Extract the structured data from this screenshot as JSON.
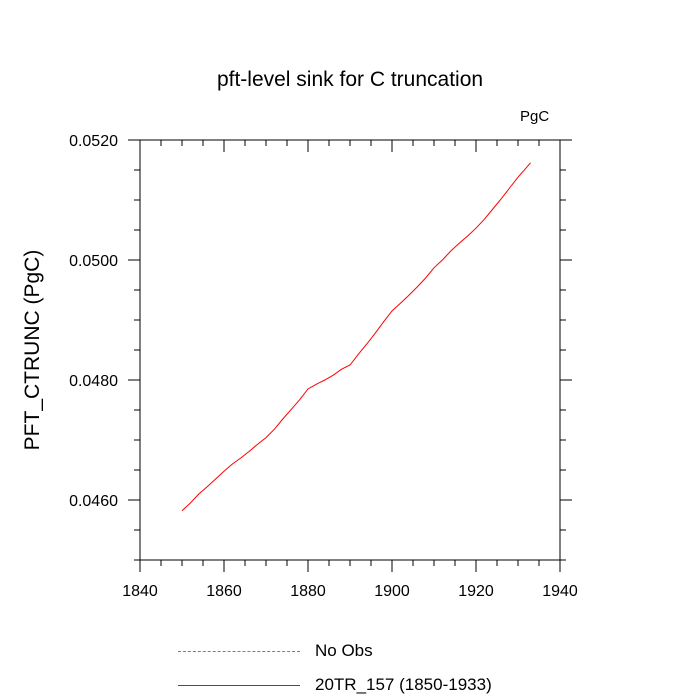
{
  "title": "pft-level sink for C truncation",
  "units_label": "PgC",
  "ylabel": "PFT_CTRUNC  (PgC)",
  "legend": [
    {
      "label": "No Obs",
      "style": "dashed",
      "color": "#6e6ef0"
    },
    {
      "label": "20TR_157 (1850-1933)",
      "style": "solid",
      "color": "#ff0000"
    }
  ],
  "chart_data": {
    "type": "line",
    "title": "pft-level sink for C truncation",
    "ylabel": "PFT_CTRUNC  (PgC)",
    "xlabel": "",
    "xlim": [
      1840,
      1940
    ],
    "ylim": [
      0.045,
      0.052
    ],
    "xticks": [
      1840,
      1860,
      1880,
      1900,
      1920,
      1940
    ],
    "xtick_labels": [
      "1840",
      "1860",
      "1880",
      "1900",
      "1920",
      "1940"
    ],
    "yticks": [
      0.046,
      0.048,
      0.05,
      0.052
    ],
    "ytick_labels": [
      "0.0460",
      "0.0480",
      "0.0500",
      "0.0520"
    ],
    "grid": false,
    "legend_position": "bottom",
    "series": [
      {
        "name": "20TR_157 (1850-1933)",
        "color": "#ff0000",
        "x": [
          1850,
          1852,
          1854,
          1856,
          1858,
          1860,
          1862,
          1864,
          1866,
          1868,
          1870,
          1872,
          1874,
          1876,
          1878,
          1880,
          1882,
          1884,
          1886,
          1888,
          1890,
          1892,
          1894,
          1896,
          1898,
          1900,
          1902,
          1904,
          1906,
          1908,
          1910,
          1912,
          1914,
          1916,
          1918,
          1920,
          1922,
          1924,
          1926,
          1928,
          1930,
          1933
        ],
        "y": [
          0.04582,
          0.04595,
          0.0461,
          0.04622,
          0.04635,
          0.04648,
          0.0466,
          0.0467,
          0.04681,
          0.04693,
          0.04704,
          0.04718,
          0.04735,
          0.04751,
          0.04767,
          0.04785,
          0.04793,
          0.048,
          0.04808,
          0.04818,
          0.04825,
          0.04843,
          0.0486,
          0.04878,
          0.04897,
          0.04915,
          0.04928,
          0.04941,
          0.04955,
          0.0497,
          0.04987,
          0.05,
          0.05015,
          0.05028,
          0.0504,
          0.05053,
          0.05068,
          0.05085,
          0.05102,
          0.0512,
          0.05138,
          0.05162
        ]
      }
    ]
  }
}
